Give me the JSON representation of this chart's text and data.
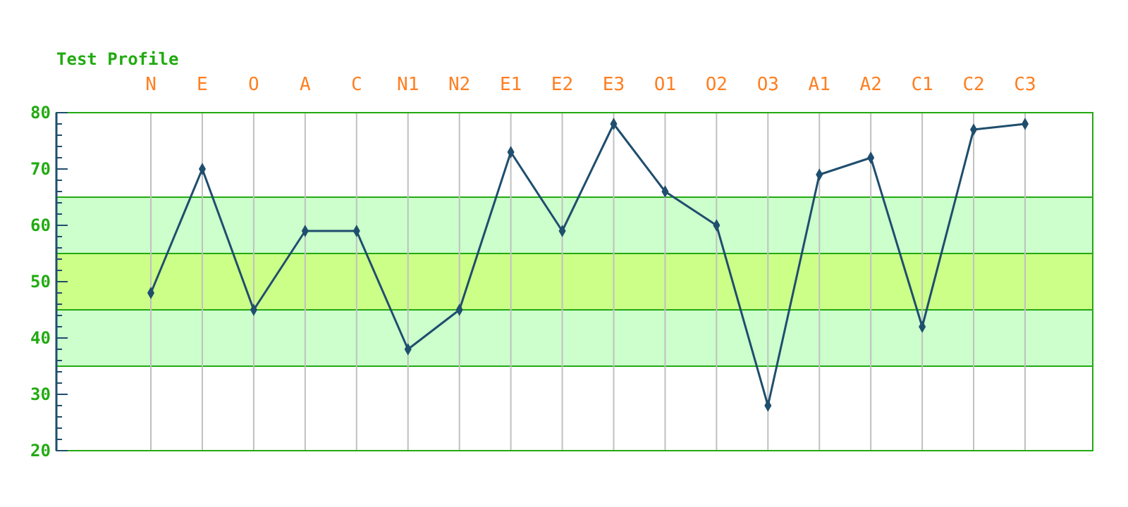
{
  "chart_data": {
    "type": "line",
    "title": "Test Profile",
    "categories": [
      "N",
      "E",
      "O",
      "A",
      "C",
      "N1",
      "N2",
      "E1",
      "E2",
      "E3",
      "O1",
      "O2",
      "O3",
      "A1",
      "A2",
      "C1",
      "C2",
      "C3"
    ],
    "series": [
      {
        "color": "#1f4e6e",
        "values": [
          48,
          70,
          45,
          59,
          59,
          38,
          45,
          73,
          59,
          78,
          66,
          60,
          28,
          69,
          72,
          42,
          77,
          78
        ]
      }
    ],
    "ylim": [
      20,
      80
    ],
    "yticks": [
      20,
      30,
      40,
      50,
      60,
      70,
      80
    ],
    "bands": [
      {
        "axis": "y",
        "from": 35,
        "to": 65,
        "color": "#ccffcc"
      },
      {
        "axis": "y",
        "from": 45,
        "to": 55,
        "color": "#ccff88"
      }
    ],
    "grid": "x",
    "marker": "diamond",
    "line_style": "solid"
  }
}
